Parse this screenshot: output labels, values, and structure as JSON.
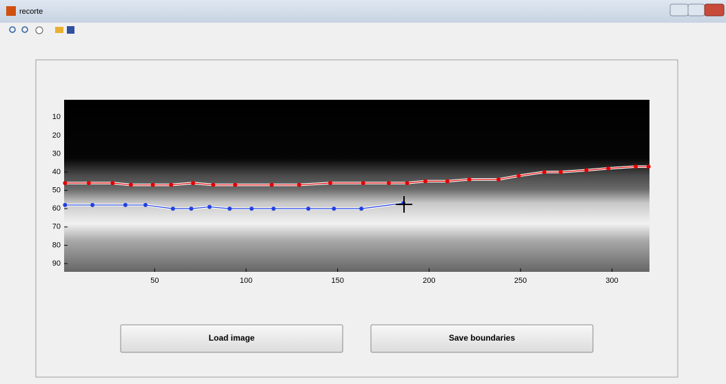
{
  "window": {
    "title": "recorte"
  },
  "axes": {
    "xlim": [
      0.5,
      320.5
    ],
    "ylim": [
      0.5,
      94.5
    ],
    "xticks": [
      50,
      100,
      150,
      200,
      250,
      300
    ],
    "yticks": [
      10,
      20,
      30,
      40,
      50,
      60,
      70,
      80,
      90
    ],
    "lines": [
      {
        "color": "#e00000",
        "x": [
          1,
          14,
          27,
          37,
          49,
          59,
          71,
          82,
          94,
          114,
          129,
          146,
          164,
          178,
          188,
          198,
          210,
          222,
          238,
          249,
          263,
          272,
          286,
          298,
          313,
          320
        ],
        "y": [
          46,
          46,
          46,
          47,
          47,
          47,
          46,
          47,
          47,
          47,
          47,
          46,
          46,
          46,
          46,
          45,
          45,
          44,
          44,
          42,
          40,
          40,
          39,
          38,
          37,
          37
        ]
      },
      {
        "color": "#2040e0",
        "x": [
          1,
          16,
          34,
          45,
          60,
          70,
          80,
          91,
          103,
          115,
          134,
          148,
          163,
          186
        ],
        "y": [
          58,
          58,
          58,
          58,
          60,
          60,
          59,
          60,
          60,
          60,
          60,
          60,
          60,
          57
        ]
      }
    ]
  },
  "buttons": [
    "Load image",
    "Save boundaries"
  ]
}
